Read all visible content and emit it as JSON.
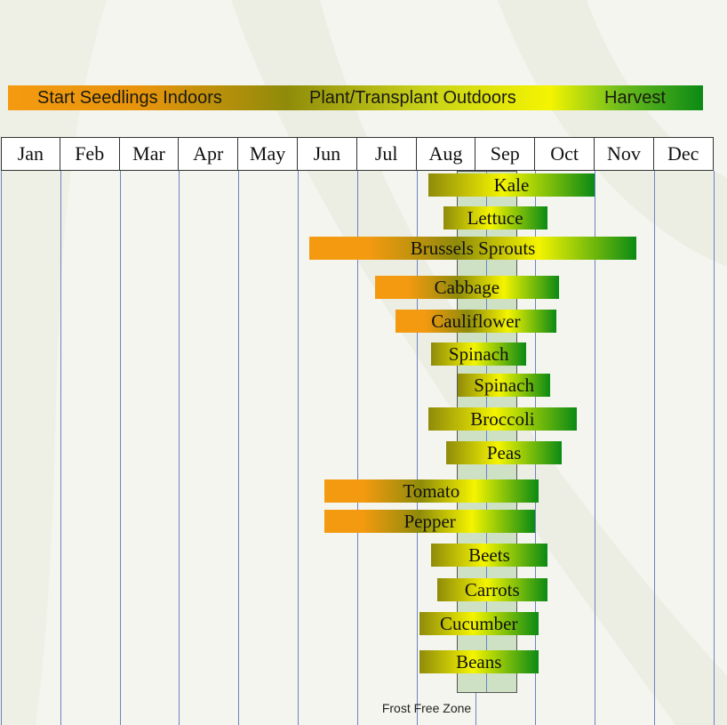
{
  "legend": {
    "start_label": "Start Seedlings Indoors",
    "plant_label": "Plant/Transplant Outdoors",
    "harvest_label": "Harvest"
  },
  "frost_label": "Frost Free Zone",
  "colors": {
    "indoor": "#f49a10",
    "plant": "#8f8b0a",
    "transition": "#f4f400",
    "harvest": "#0b8a14",
    "frost_zone": "#cfe1c5",
    "grid_line": "#6d82c2"
  },
  "chart_data": {
    "type": "gantt",
    "months": [
      "Jan",
      "Feb",
      "Mar",
      "Apr",
      "May",
      "Jun",
      "Jul",
      "Aug",
      "Sep",
      "Oct",
      "Nov",
      "Dec"
    ],
    "frost_free_zone": [
      7.68,
      8.7
    ],
    "crops": [
      {
        "name": "Kale",
        "start": 7.2,
        "end": 10.0,
        "indoor": false
      },
      {
        "name": "Lettuce",
        "start": 7.45,
        "end": 9.2,
        "indoor": false
      },
      {
        "name": "Brussels Sprouts",
        "start": 5.2,
        "end": 10.7,
        "indoor": true
      },
      {
        "name": "Cabbage",
        "start": 6.3,
        "end": 9.4,
        "indoor": true
      },
      {
        "name": "Cauliflower",
        "start": 6.65,
        "end": 9.35,
        "indoor": true
      },
      {
        "name": "Spinach",
        "start": 7.25,
        "end": 8.85,
        "indoor": false
      },
      {
        "name": "Spinach",
        "start": 7.7,
        "end": 9.25,
        "indoor": false
      },
      {
        "name": "Broccoli",
        "start": 7.2,
        "end": 9.7,
        "indoor": false
      },
      {
        "name": "Peas",
        "start": 7.5,
        "end": 9.45,
        "indoor": false
      },
      {
        "name": "Tomato",
        "start": 5.45,
        "end": 9.05,
        "indoor": true
      },
      {
        "name": "Pepper",
        "start": 5.45,
        "end": 9.0,
        "indoor": true
      },
      {
        "name": "Beets",
        "start": 7.25,
        "end": 9.2,
        "indoor": false
      },
      {
        "name": "Carrots",
        "start": 7.35,
        "end": 9.2,
        "indoor": false
      },
      {
        "name": "Cucumber",
        "start": 7.05,
        "end": 9.05,
        "indoor": false
      },
      {
        "name": "Beans",
        "start": 7.05,
        "end": 9.05,
        "indoor": false
      }
    ]
  }
}
